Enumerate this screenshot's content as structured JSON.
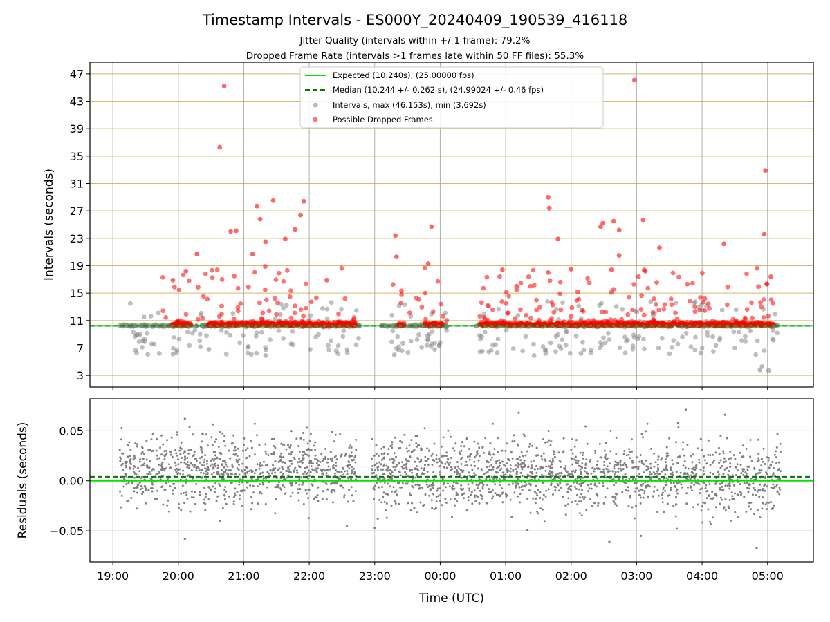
{
  "figure": {
    "title": "Timestamp Intervals - ES000Y_20240409_190539_416118",
    "subtitle_1": "Jitter Quality (intervals within +/-1 frame): 79.2%",
    "subtitle_2": "Dropped Frame Rate (intervals >1 frames late within 50 FF files): 55.3%",
    "xlabel": "Time (UTC)"
  },
  "chart_data": [
    {
      "type": "scatter",
      "panel": "top",
      "ylabel": "Intervals (seconds)",
      "ylim": [
        1.3,
        48.7
      ],
      "yticks": [
        3,
        7,
        11,
        15,
        19,
        23,
        27,
        31,
        35,
        39,
        43,
        47
      ],
      "grid": "horizontal gold lines; vertical gray lines",
      "x_ticks": [
        "19:00",
        "20:00",
        "21:00",
        "22:00",
        "23:00",
        "00:00",
        "01:00",
        "02:00",
        "03:00",
        "04:00",
        "05:00"
      ],
      "x_range_hours": [
        18.65,
        29.7
      ],
      "data_span_hours": [
        19.1,
        29.2
      ],
      "reference_lines": [
        {
          "label": "Expected (10.240s), (25.00000 fps)",
          "value": 10.24,
          "color": "#00e400",
          "style": "solid"
        },
        {
          "label": "Median (10.244 +/- 0.262 s), (24.99024 +/- 0.46 fps)",
          "value": 10.244,
          "color": "#007a00",
          "style": "dashed"
        }
      ],
      "series": [
        {
          "name": "Intervals, max (46.153s), min (3.692s)",
          "color": "#808080",
          "max": 46.153,
          "min": 3.692
        },
        {
          "name": "Possible Dropped Frames",
          "color": "#ff0000"
        }
      ],
      "legend": "top-center",
      "dropped_points_notable": [
        {
          "x": "20:42",
          "y": 45.2
        },
        {
          "x": "20:38",
          "y": 36.3
        },
        {
          "x": "21:27",
          "y": 28.5
        },
        {
          "x": "21:12",
          "y": 27.7
        },
        {
          "x": "21:55",
          "y": 28.4
        },
        {
          "x": "21:52",
          "y": 26.4
        },
        {
          "x": "21:47",
          "y": 24.3
        },
        {
          "x": "21:15",
          "y": 25.8
        },
        {
          "x": "21:20",
          "y": 22.5
        },
        {
          "x": "21:38",
          "y": 22.9
        },
        {
          "x": "20:48",
          "y": 24.0
        },
        {
          "x": "20:53",
          "y": 24.1
        },
        {
          "x": "23:19",
          "y": 23.4
        },
        {
          "x": "23:20",
          "y": 20.3
        },
        {
          "x": "23:52",
          "y": 24.7
        },
        {
          "x": "23:49",
          "y": 19.3
        },
        {
          "x": "01:39",
          "y": 29.0
        },
        {
          "x": "01:40",
          "y": 27.4
        },
        {
          "x": "01:48",
          "y": 22.9
        },
        {
          "x": "01:39",
          "y": 18.0
        },
        {
          "x": "02:27",
          "y": 24.7
        },
        {
          "x": "02:29",
          "y": 25.2
        },
        {
          "x": "02:39",
          "y": 25.5
        },
        {
          "x": "02:44",
          "y": 24.2
        },
        {
          "x": "02:58",
          "y": 46.1
        },
        {
          "x": "03:06",
          "y": 25.7
        },
        {
          "x": "03:21",
          "y": 21.6
        },
        {
          "x": "02:44",
          "y": 20.5
        },
        {
          "x": "02:37",
          "y": 18.4
        },
        {
          "x": "04:20",
          "y": 22.2
        },
        {
          "x": "04:58",
          "y": 32.9
        },
        {
          "x": "04:57",
          "y": 23.6
        },
        {
          "x": "05:03",
          "y": 17.4
        },
        {
          "x": "20:17",
          "y": 20.7
        },
        {
          "x": "20:07",
          "y": 18.2
        },
        {
          "x": "19:55",
          "y": 16.9
        },
        {
          "x": "21:08",
          "y": 20.7
        },
        {
          "x": "22:16",
          "y": 16.9
        },
        {
          "x": "00:57",
          "y": 18.4
        },
        {
          "x": "01:10",
          "y": 16.0
        },
        {
          "x": "02:00",
          "y": 18.5
        },
        {
          "x": "03:08",
          "y": 18.2
        }
      ],
      "interval_points_notable": [
        {
          "x": "04:53",
          "y": 3.8
        },
        {
          "x": "04:55",
          "y": 4.3
        },
        {
          "x": "05:01",
          "y": 3.7
        },
        {
          "x": "23:18",
          "y": 6.0
        },
        {
          "x": "21:20",
          "y": 5.9
        },
        {
          "x": "01:26",
          "y": 5.9
        },
        {
          "x": "02:09",
          "y": 6.2
        },
        {
          "x": "19:25",
          "y": 9.0
        },
        {
          "x": "20:28",
          "y": 6.8
        }
      ]
    },
    {
      "type": "scatter",
      "panel": "bottom",
      "ylabel": "Residuals (seconds)",
      "ylim": [
        -0.081,
        0.082
      ],
      "yticks": [
        -0.05,
        0.0,
        0.05
      ],
      "ytick_labels": [
        "−0.05",
        "0.00",
        "0.05"
      ],
      "grid": "both axes, light gray",
      "reference_lines": [
        {
          "value": 0.0,
          "color": "#00e400",
          "style": "solid"
        },
        {
          "value": 0.004,
          "color": "#007a00",
          "style": "dashed"
        }
      ],
      "series": [
        {
          "name": "residuals",
          "color": "#808080",
          "approx_center": 0.007,
          "approx_spread_sd": 0.018,
          "approx_min": -0.067,
          "approx_max": 0.071
        }
      ],
      "residual_points_notable": [
        {
          "x": "20:06",
          "y": -0.058
        },
        {
          "x": "02:35",
          "y": -0.061
        },
        {
          "x": "03:04",
          "y": -0.055
        },
        {
          "x": "04:50",
          "y": -0.067
        },
        {
          "x": "23:00",
          "y": -0.047
        },
        {
          "x": "01:20",
          "y": -0.049
        },
        {
          "x": "01:12",
          "y": 0.068
        },
        {
          "x": "03:45",
          "y": 0.071
        },
        {
          "x": "04:21",
          "y": 0.066
        },
        {
          "x": "20:06",
          "y": 0.062
        },
        {
          "x": "03:38",
          "y": 0.058
        }
      ]
    }
  ]
}
